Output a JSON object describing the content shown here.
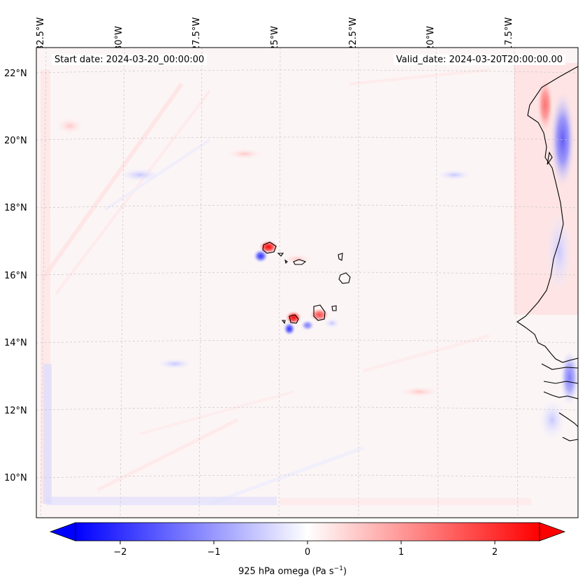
{
  "map": {
    "start_date_text": "Start date: 2024-03-20_00:00:00",
    "valid_date_text": "Valid_date: 2024-03-20T20:00:00.00",
    "longitude_labels": [
      "32.5°W",
      "30°W",
      "27.5°W",
      "25°W",
      "22.5°W",
      "20°W",
      "17.5°W"
    ],
    "latitude_labels": [
      "22°N",
      "20°N",
      "18°N",
      "16°N",
      "14°N",
      "12°N",
      "10°N"
    ],
    "colorbar": {
      "ticks": [
        "−2",
        "−1",
        "0",
        "1",
        "2"
      ],
      "label_main": "925 hPa omega (Pa s",
      "label_exp": "−1",
      "label_end": ")",
      "min": -2.6,
      "max": 2.6,
      "negative_color": "#0000ff",
      "positive_color": "#ff0000"
    },
    "layers": {
      "coastline": "black",
      "gridlines": "light grey dashed"
    }
  }
}
